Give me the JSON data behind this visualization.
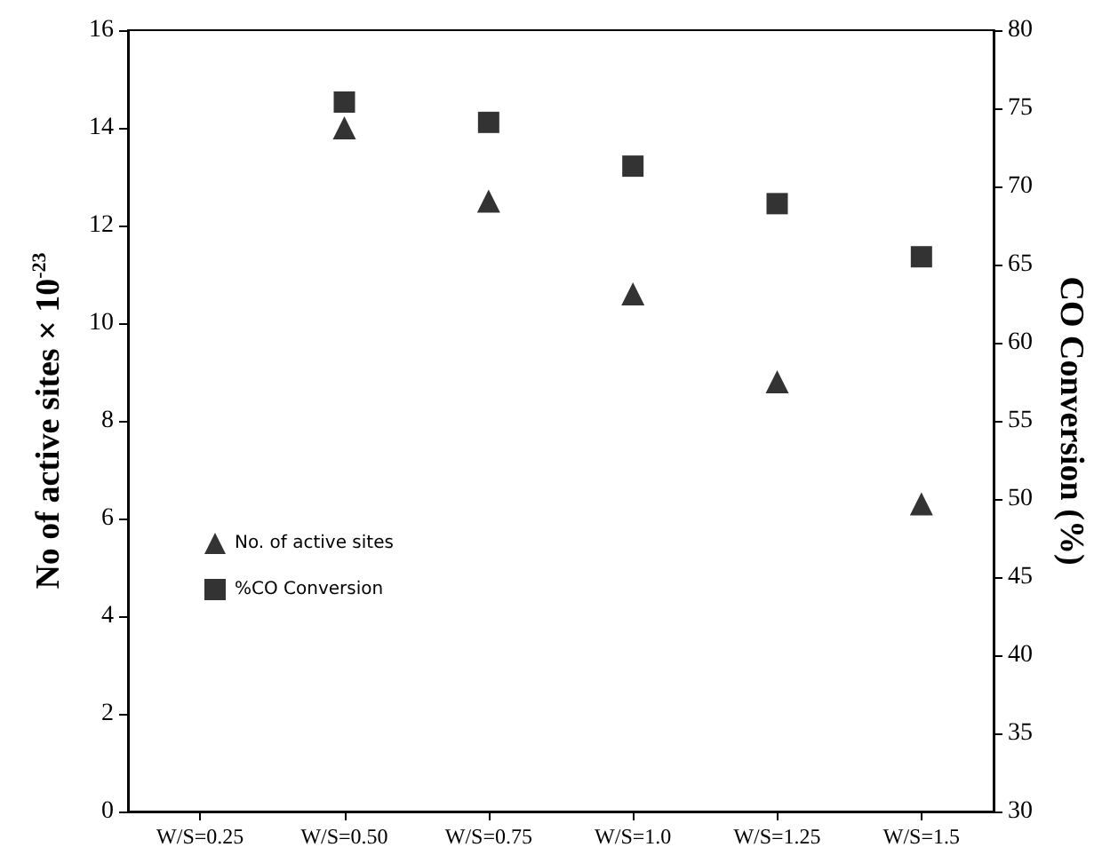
{
  "chart_data": {
    "type": "scatter",
    "ylabel": "No of active sites × 10$^{-23}$",
    "y2label": "CO Conversion (%)",
    "categories": [
      "W/S=0.25",
      "W/S=0.50",
      "W/S=0.75",
      "W/S=1.0",
      "W/S=1.25",
      "W/S=1.5"
    ],
    "series": [
      {
        "name": "No. of active sites",
        "color": "#000000",
        "marker": "triangle",
        "values": [
          null,
          14.0,
          12.5,
          10.6,
          8.8,
          6.3
        ]
      },
      {
        "name": "%CO Conversion",
        "color": "#000000",
        "marker": "square",
        "axis": "y2",
        "values": [
          null,
          75.4,
          74.1,
          71.3,
          68.9,
          65.5
        ]
      }
    ],
    "ylim": [
      0,
      16
    ],
    "yticks": [
      0,
      2,
      4,
      6,
      8,
      10,
      12,
      14,
      16
    ],
    "y2lim": [
      30,
      80
    ],
    "y2ticks": [
      30,
      35,
      40,
      45,
      50,
      55,
      60,
      65,
      70,
      75,
      80
    ],
    "grid": false,
    "legend": "left"
  }
}
